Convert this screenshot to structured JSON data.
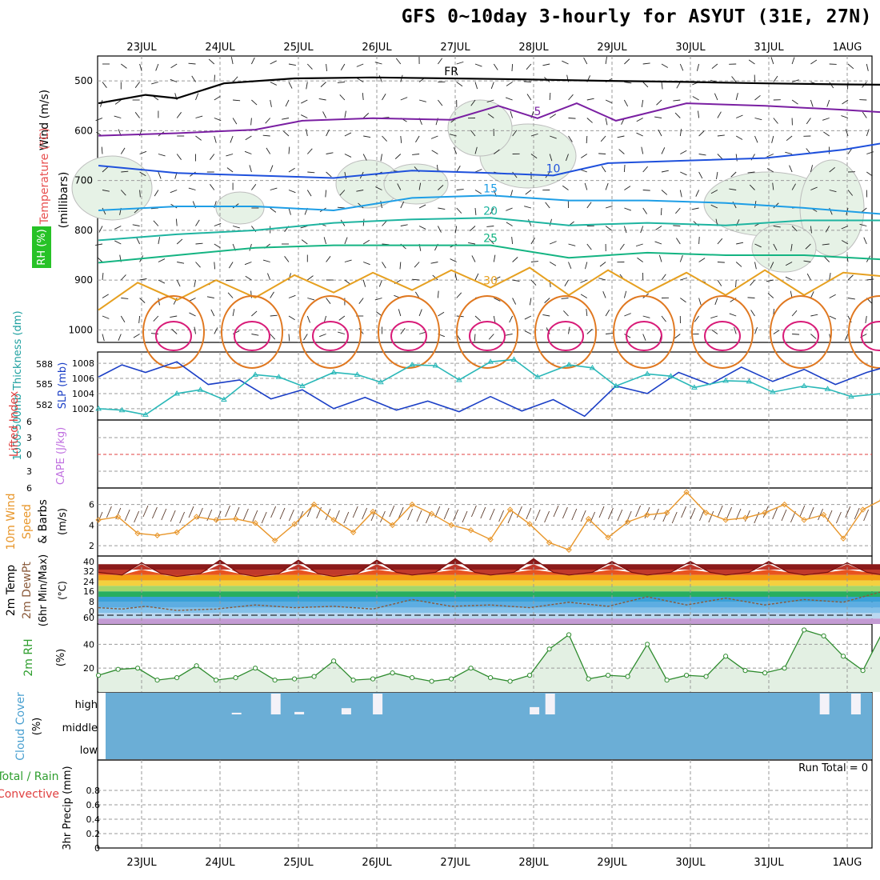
{
  "title": "GFS 0~10day 3-hourly for ASYUT (31E, 27N)",
  "date_labels": [
    "23JUL",
    "24JUL",
    "25JUL",
    "26JUL",
    "27JUL",
    "28JUL",
    "29JUL",
    "30JUL",
    "31JUL",
    "1AUG"
  ],
  "chart_data": [
    {
      "type": "line",
      "panel": "upper-air",
      "ylabel": [
        "Wind (m/s)",
        "Temperature (°C)",
        "RH (%)",
        "(millibars)"
      ],
      "y_ticks": [
        "500",
        "600",
        "700",
        "800",
        "900",
        "1000"
      ],
      "ylim": [
        1000,
        450
      ],
      "contour_labels": [
        "FR",
        "5",
        "10",
        "15",
        "20",
        "25",
        "30"
      ],
      "series": [
        {
          "name": "FR",
          "color": "#000000",
          "x_days": [
            0,
            0.6,
            1.0,
            1.6,
            2.5,
            3.5,
            4.5,
            5.5,
            6.5,
            7.5,
            8.5,
            9.5,
            10.2
          ],
          "values": [
            545,
            528,
            535,
            505,
            495,
            493,
            495,
            497,
            500,
            502,
            505,
            507,
            508
          ]
        },
        {
          "name": "5",
          "color": "#7a1fa2",
          "x_days": [
            0,
            1,
            2,
            2.6,
            3.5,
            4.5,
            5.1,
            5.6,
            6.1,
            6.6,
            7.5,
            8.5,
            9.5,
            10.2
          ],
          "values": [
            610,
            605,
            598,
            580,
            575,
            578,
            550,
            575,
            545,
            580,
            545,
            550,
            558,
            565
          ]
        },
        {
          "name": "10",
          "color": "#1e50dc",
          "x_days": [
            0,
            1,
            2,
            3,
            4,
            5,
            5.8,
            6.5,
            7.5,
            8.5,
            9.5,
            10.2
          ],
          "values": [
            670,
            685,
            690,
            695,
            680,
            685,
            690,
            665,
            660,
            655,
            638,
            620
          ]
        },
        {
          "name": "15",
          "color": "#1e9ee6",
          "x_days": [
            0,
            1,
            2,
            3,
            4,
            5,
            6,
            7,
            8,
            9,
            10.2
          ],
          "values": [
            760,
            752,
            752,
            760,
            735,
            730,
            740,
            740,
            745,
            755,
            770
          ]
        },
        {
          "name": "20",
          "color": "#1eb4a0",
          "x_days": [
            0,
            1,
            2,
            3,
            4,
            5,
            6,
            7,
            8,
            9,
            10.2
          ],
          "values": [
            820,
            808,
            800,
            785,
            778,
            775,
            790,
            785,
            790,
            780,
            780
          ]
        },
        {
          "name": "25",
          "color": "#14b482",
          "x_days": [
            0,
            1,
            2,
            3,
            4,
            5,
            6,
            7,
            8,
            9,
            10.2
          ],
          "values": [
            865,
            850,
            835,
            830,
            830,
            830,
            855,
            845,
            850,
            850,
            860
          ]
        },
        {
          "name": "30",
          "color": "#e6a020",
          "x_days": [
            0,
            0.5,
            1,
            1.5,
            2,
            2.5,
            3,
            3.5,
            4,
            4.5,
            5,
            5.5,
            6,
            6.5,
            7,
            7.5,
            8,
            8.5,
            9,
            9.5,
            10.2
          ],
          "values": [
            960,
            905,
            940,
            900,
            935,
            890,
            925,
            885,
            920,
            880,
            915,
            875,
            930,
            880,
            925,
            885,
            930,
            880,
            930,
            885,
            895
          ]
        }
      ]
    },
    {
      "type": "line",
      "panel": "thickness-slp",
      "ylabel_left": "1000-500mb Thickness (dm)",
      "ylabel_right": "SLP (mb)",
      "left_ticks": [
        "588",
        "585",
        "582"
      ],
      "right_ticks": [
        "1008",
        "1006",
        "1004",
        "1002"
      ],
      "ylim_slp": [
        1000.5,
        1009.5
      ],
      "series": [
        {
          "name": "1000-500mb Thickness",
          "color": "#1b3fc6",
          "x_days": [
            0,
            0.3,
            0.6,
            1.0,
            1.4,
            1.8,
            2.2,
            2.6,
            3.0,
            3.4,
            3.8,
            4.2,
            4.6,
            5.0,
            5.4,
            5.8,
            6.2,
            6.6,
            7.0,
            7.4,
            7.8,
            8.2,
            8.6,
            9.0,
            9.4,
            9.8,
            10.2
          ],
          "values": [
            1006.2,
            1007.8,
            1006.8,
            1008.2,
            1005.2,
            1005.8,
            1003.3,
            1004.5,
            1002.0,
            1003.5,
            1001.8,
            1003.0,
            1001.6,
            1003.6,
            1001.7,
            1003.2,
            1001.0,
            1005.0,
            1004.0,
            1006.8,
            1005.2,
            1007.5,
            1005.6,
            1007.2,
            1005.2,
            1006.8,
            1008.0
          ]
        },
        {
          "name": "SLP",
          "color": "#2ab8b8",
          "x_days": [
            0,
            0.3,
            0.6,
            1.0,
            1.3,
            1.6,
            2.0,
            2.3,
            2.6,
            3.0,
            3.3,
            3.6,
            4.0,
            4.3,
            4.6,
            5.0,
            5.3,
            5.6,
            6.0,
            6.3,
            6.6,
            7.0,
            7.3,
            7.6,
            8.0,
            8.3,
            8.6,
            9.0,
            9.3,
            9.6,
            10.0,
            10.2
          ],
          "values": [
            1002.0,
            1001.8,
            1001.2,
            1004.0,
            1004.5,
            1003.2,
            1006.5,
            1006.2,
            1005.0,
            1006.8,
            1006.5,
            1005.5,
            1007.8,
            1007.7,
            1005.8,
            1008.2,
            1008.5,
            1006.2,
            1007.8,
            1007.4,
            1005.0,
            1006.6,
            1006.3,
            1004.8,
            1005.7,
            1005.6,
            1004.2,
            1005.0,
            1004.6,
            1003.6,
            1004.0,
            1003.0
          ]
        }
      ]
    },
    {
      "type": "line",
      "panel": "stability",
      "ylabel": [
        "Lifted Index",
        "CAPE (J/kg)"
      ],
      "y_ticks": [
        "6",
        "3",
        "0",
        "3",
        "6"
      ],
      "series": [
        {
          "name": "Lifted Index",
          "color": "#e04040",
          "x_days": [
            0,
            10.2
          ],
          "values": [
            0,
            0
          ]
        }
      ]
    },
    {
      "type": "line",
      "panel": "10m-wind",
      "ylabel": [
        "10m Wind",
        "Speed",
        "& Barbs",
        "(m/s)"
      ],
      "y_ticks": [
        "6",
        "4",
        "2"
      ],
      "ylim": [
        1,
        7.6
      ],
      "series": [
        {
          "name": "10m Wind Speed",
          "color": "#e8962a",
          "x_days": [
            0,
            0.25,
            0.5,
            0.75,
            1.0,
            1.25,
            1.5,
            1.75,
            2.0,
            2.25,
            2.5,
            2.75,
            3.0,
            3.25,
            3.5,
            3.75,
            4.0,
            4.25,
            4.5,
            4.75,
            5.0,
            5.25,
            5.5,
            5.75,
            6.0,
            6.25,
            6.5,
            6.75,
            7.0,
            7.25,
            7.5,
            7.75,
            8.0,
            8.25,
            8.5,
            8.75,
            9.0,
            9.25,
            9.5,
            9.75,
            10.0,
            10.2
          ],
          "values": [
            4.5,
            4.8,
            3.2,
            3.0,
            3.3,
            4.8,
            4.5,
            4.6,
            4.2,
            2.5,
            4.1,
            6.0,
            4.5,
            3.3,
            5.3,
            4.0,
            6.0,
            5.1,
            4.0,
            3.5,
            2.6,
            5.5,
            4.1,
            2.3,
            1.6,
            4.6,
            2.8,
            4.3,
            5.0,
            5.2,
            7.2,
            5.2,
            4.5,
            4.7,
            5.2,
            6.0,
            4.5,
            5.0,
            2.7,
            5.5,
            6.5,
            6.3
          ]
        }
      ]
    },
    {
      "type": "area",
      "panel": "2m-temp",
      "ylabel": [
        "2m Temp",
        "2m DewPt",
        "(6hr Min/Max)",
        "(°C)"
      ],
      "y_ticks": [
        "40",
        "32",
        "24",
        "16",
        "8",
        "0",
        "60"
      ],
      "ylim": [
        -8,
        42
      ],
      "series": [
        {
          "name": "2m Temp",
          "color": "#7a1010",
          "x_days": [
            0,
            0.3,
            0.55,
            0.8,
            1.0,
            1.3,
            1.55,
            1.8,
            2.0,
            2.3,
            2.55,
            2.8,
            3.0,
            3.3,
            3.55,
            3.8,
            4.0,
            4.3,
            4.55,
            4.8,
            5.0,
            5.3,
            5.55,
            5.8,
            6.0,
            6.3,
            6.55,
            6.8,
            7.0,
            7.3,
            7.55,
            7.8,
            8.0,
            8.3,
            8.55,
            8.8,
            9.0,
            9.3,
            9.55,
            9.8,
            10.0,
            10.2
          ],
          "values": [
            30,
            28,
            37,
            29,
            27,
            29,
            39,
            29,
            27,
            29,
            39,
            29,
            27,
            29,
            39,
            30,
            28,
            30,
            40,
            30,
            28,
            30,
            40,
            30,
            28,
            30,
            38,
            30,
            28,
            30,
            38,
            30,
            28,
            30,
            38,
            30,
            28,
            30,
            37,
            30,
            28,
            28
          ]
        },
        {
          "name": "2m DewPt",
          "color": "#8a5a3a",
          "x_days": [
            0,
            0.3,
            0.6,
            1.0,
            1.5,
            2.0,
            2.5,
            3.0,
            3.5,
            4.0,
            4.5,
            5.0,
            5.5,
            6.0,
            6.5,
            7.0,
            7.5,
            8.0,
            8.5,
            9.0,
            9.5,
            10.0,
            10.2
          ],
          "values": [
            4,
            3,
            5,
            2,
            3,
            6,
            4,
            5,
            3,
            10,
            5,
            6,
            4,
            8,
            5,
            12,
            6,
            11,
            6,
            10,
            8,
            16,
            17
          ]
        }
      ]
    },
    {
      "type": "area",
      "panel": "2m-rh",
      "ylabel": [
        "2m RH",
        "(%)"
      ],
      "y_ticks": [
        "40",
        "20"
      ],
      "ylim": [
        0,
        57
      ],
      "series": [
        {
          "name": "2m RH",
          "color": "#2e8b2e",
          "x_days": [
            0,
            0.25,
            0.5,
            0.75,
            1.0,
            1.25,
            1.5,
            1.75,
            2.0,
            2.25,
            2.5,
            2.75,
            3.0,
            3.25,
            3.5,
            3.75,
            4.0,
            4.25,
            4.5,
            4.75,
            5.0,
            5.25,
            5.5,
            5.75,
            6.0,
            6.25,
            6.5,
            6.75,
            7.0,
            7.25,
            7.5,
            7.75,
            8.0,
            8.25,
            8.5,
            8.75,
            9.0,
            9.25,
            9.5,
            9.75,
            10.0,
            10.2
          ],
          "values": [
            14,
            19,
            20,
            10,
            12,
            22,
            10,
            12,
            20,
            10,
            11,
            13,
            26,
            10,
            11,
            16,
            12,
            9,
            11,
            20,
            12,
            9,
            14,
            36,
            48,
            11,
            14,
            13,
            40,
            10,
            14,
            13,
            30,
            18,
            16,
            20,
            52,
            47,
            30,
            18,
            50,
            47
          ]
        }
      ]
    },
    {
      "type": "bar",
      "panel": "cloud-cover",
      "ylabel": [
        "Cloud Cover",
        "(%)"
      ],
      "levels": [
        "high",
        "middle",
        "low"
      ],
      "series": [
        {
          "name": "high",
          "color": "#f4f2f8",
          "x_days": [
            1.7,
            2.2,
            2.5,
            3.1,
            3.5,
            5.5,
            5.7,
            9.2,
            9.6
          ],
          "values": [
            8,
            100,
            12,
            30,
            100,
            35,
            100,
            100,
            100
          ]
        }
      ]
    },
    {
      "type": "line",
      "panel": "precip",
      "ylabel": [
        "Total / Rain",
        "Convective",
        "3hr Precip (mm)"
      ],
      "y_ticks": [
        "0.8",
        "0.6",
        "0.4",
        "0.2",
        "0"
      ],
      "ylim": [
        0,
        1
      ],
      "run_total_label": "Run Total = 0",
      "series": [
        {
          "name": "Total / Rain",
          "color": "#2e8b2e",
          "x_days": [
            0,
            10.2
          ],
          "values": [
            0,
            0
          ]
        }
      ]
    }
  ]
}
